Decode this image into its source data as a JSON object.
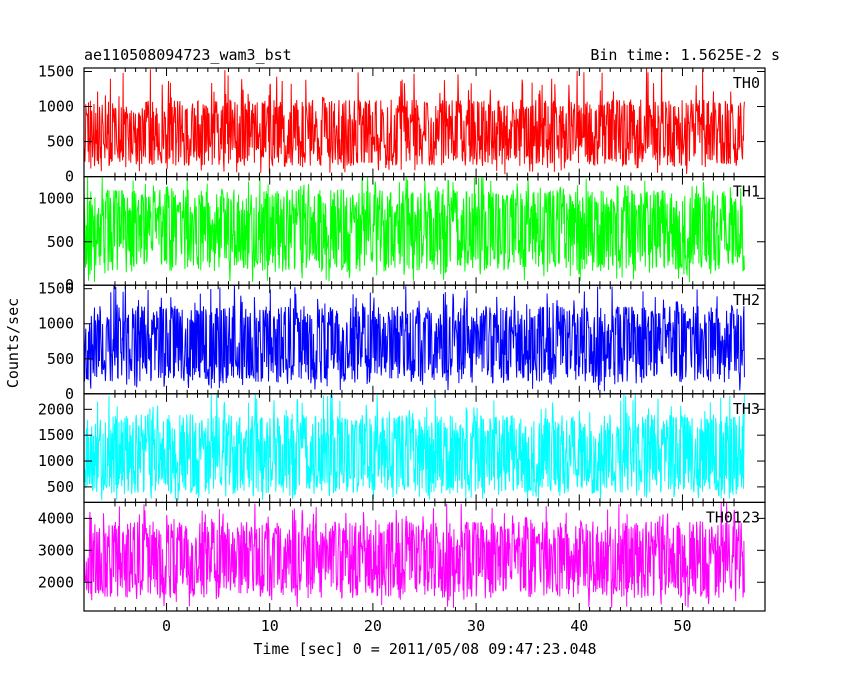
{
  "header": {
    "title": "ae110508094723_wam3_bst",
    "bin_time": "Bin time: 1.5625E-2 s"
  },
  "chart_data": {
    "type": "line",
    "title": "ae110508094723_wam3_bst",
    "subtitle": "Bin time: 1.5625E-2 s",
    "xlabel": "Time [sec] 0 = 2011/05/08 09:47:23.048",
    "ylabel": "Counts/sec",
    "xlim": [
      -8,
      58
    ],
    "x_range": [
      -8,
      56
    ],
    "x_ticks": [
      0,
      10,
      20,
      30,
      40,
      50
    ],
    "grid": false,
    "panels": [
      {
        "name": "TH0",
        "color": "#ff0000",
        "ylim": [
          0,
          1550
        ],
        "y_ticks": [
          0,
          500,
          1000,
          1500
        ],
        "mean": 650,
        "typical_min": 150,
        "typical_max": 1100,
        "extreme_max": 1550
      },
      {
        "name": "TH1",
        "color": "#00ff00",
        "ylim": [
          0,
          1250
        ],
        "y_ticks": [
          0,
          500,
          1000
        ],
        "mean": 650,
        "typical_min": 150,
        "typical_max": 1100,
        "extreme_max": 1250
      },
      {
        "name": "TH2",
        "color": "#0000ff",
        "ylim": [
          0,
          1550
        ],
        "y_ticks": [
          0,
          500,
          1000,
          1500
        ],
        "mean": 700,
        "typical_min": 150,
        "typical_max": 1250,
        "extreme_max": 1550
      },
      {
        "name": "TH3",
        "color": "#00ffff",
        "ylim": [
          200,
          2300
        ],
        "y_ticks": [
          500,
          1000,
          1500,
          2000
        ],
        "mean": 1100,
        "typical_min": 350,
        "typical_max": 1900,
        "extreme_max": 2300
      },
      {
        "name": "TH0123",
        "color": "#ff00ff",
        "ylim": [
          1100,
          4500
        ],
        "y_ticks": [
          2000,
          3000,
          4000
        ],
        "mean": 2700,
        "typical_min": 1500,
        "typical_max": 3900,
        "extreme_max": 4500
      }
    ]
  }
}
